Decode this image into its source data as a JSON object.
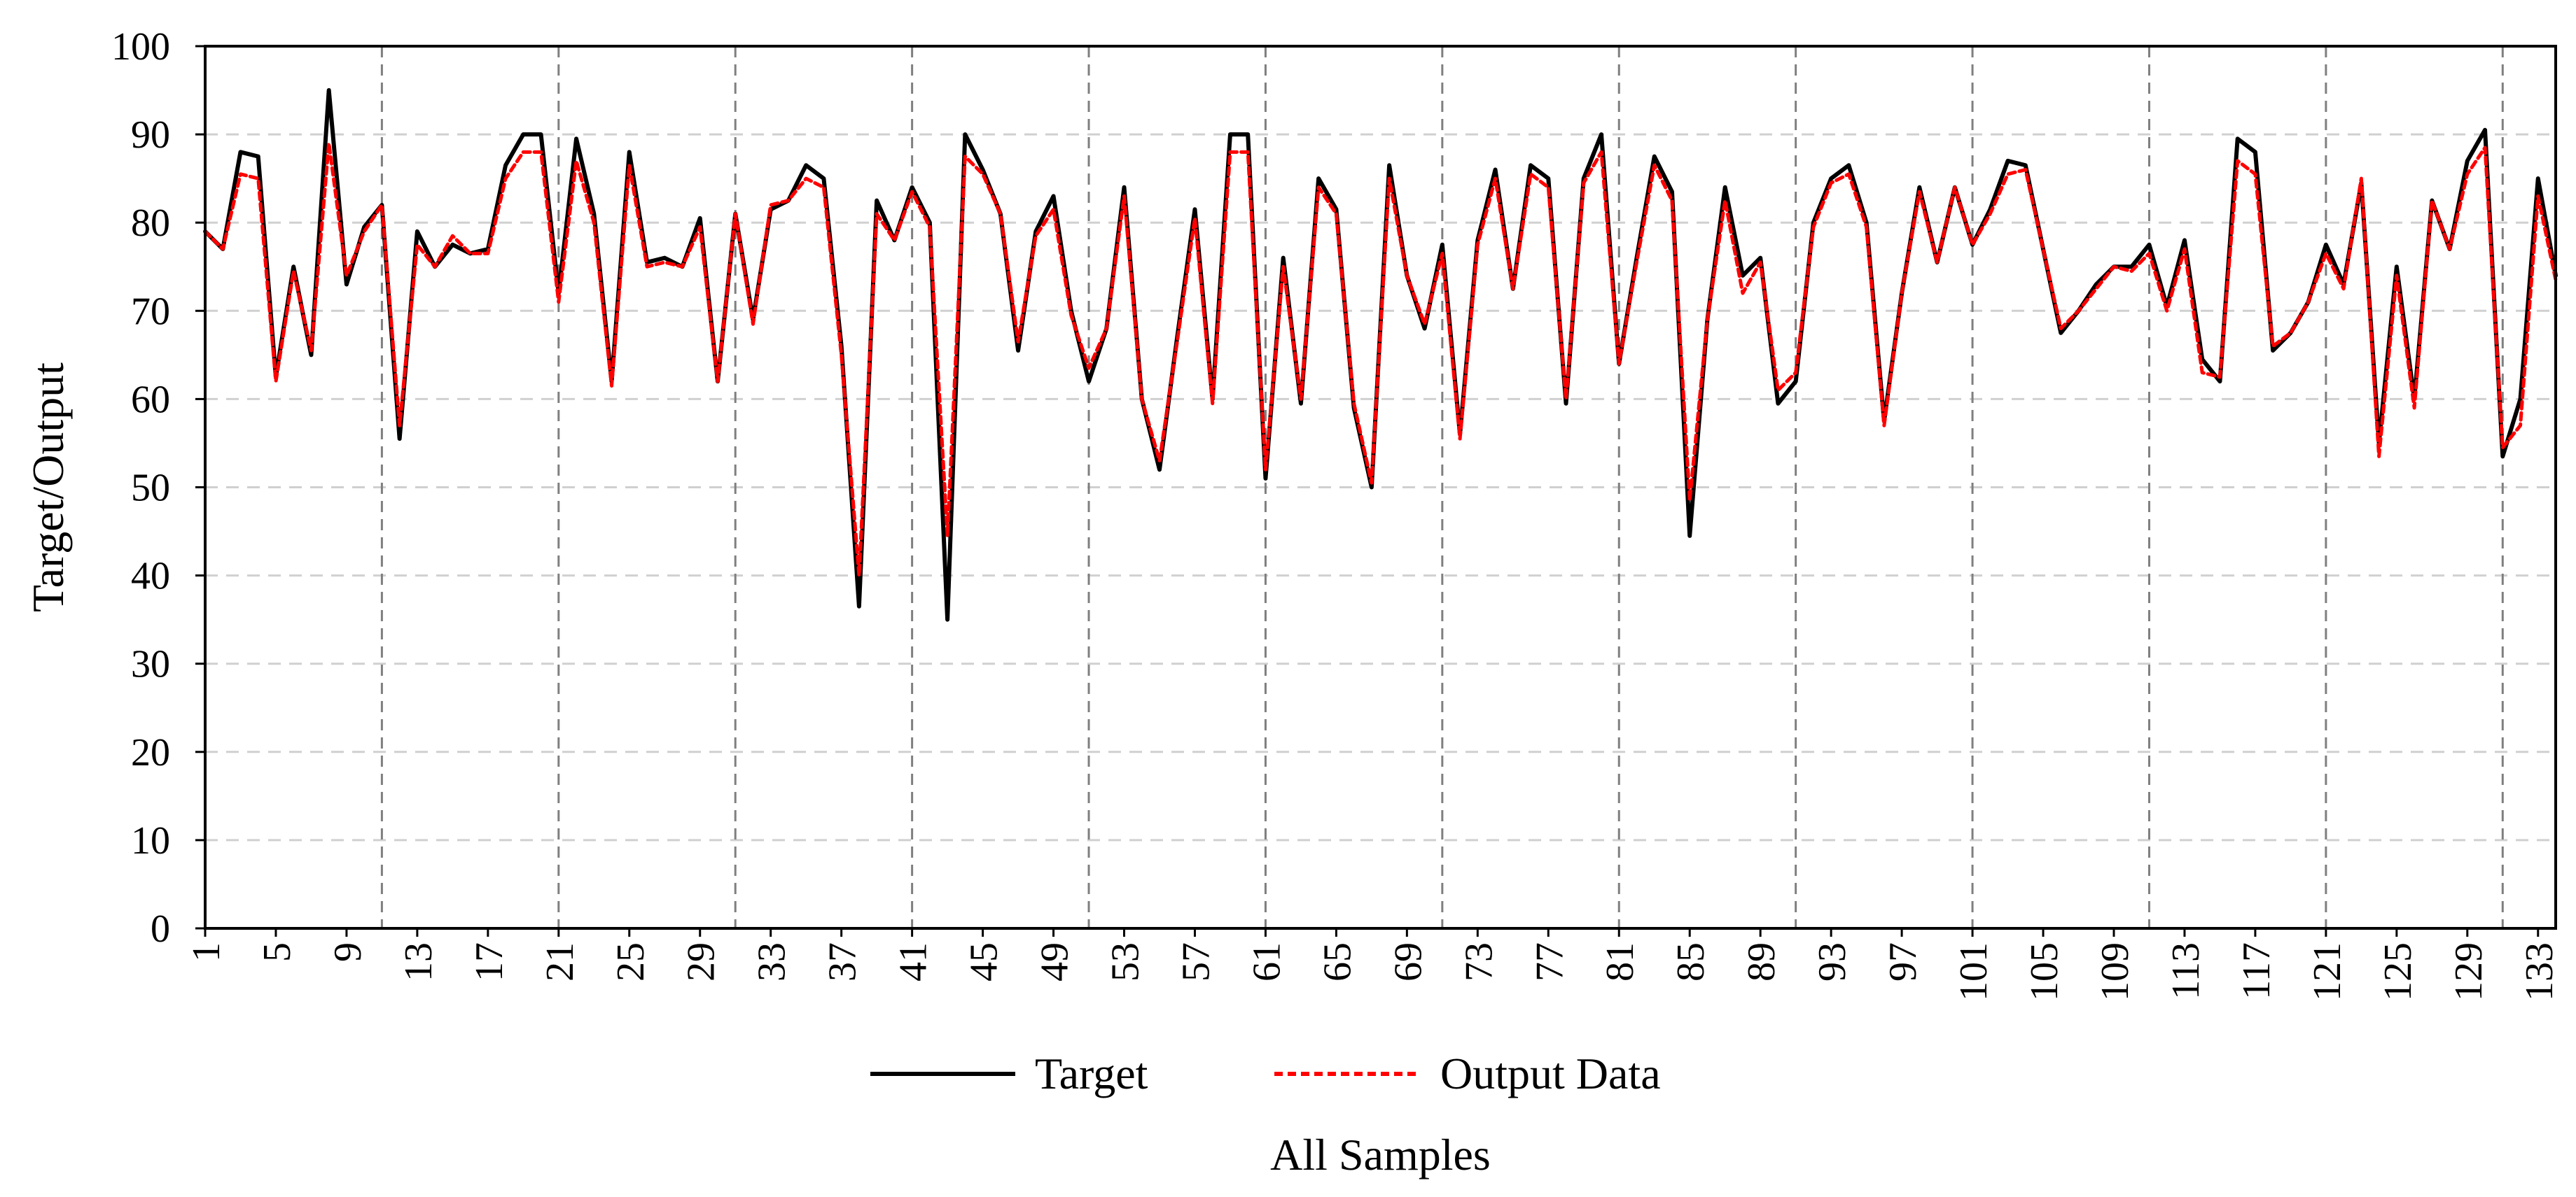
{
  "chart_data": {
    "type": "line",
    "title": "",
    "xlabel": "All Samples",
    "ylabel": "Target/Output",
    "xlim": [
      1,
      134
    ],
    "ylim": [
      0,
      100
    ],
    "yticks": [
      0,
      10,
      20,
      30,
      40,
      50,
      60,
      70,
      80,
      90,
      100
    ],
    "xticks": [
      1,
      5,
      9,
      13,
      17,
      21,
      25,
      29,
      33,
      37,
      41,
      45,
      49,
      53,
      57,
      61,
      65,
      69,
      73,
      77,
      81,
      85,
      89,
      93,
      97,
      101,
      105,
      109,
      113,
      117,
      121,
      125,
      129,
      133
    ],
    "vertical_dashed_lines_at": [
      11,
      21,
      31,
      41,
      51,
      61,
      71,
      81,
      91,
      101,
      111,
      121,
      131
    ],
    "horizontal_grid": true,
    "legend_position": "bottom-center",
    "series": [
      {
        "name": "Target",
        "color": "#000000",
        "style": "solid",
        "values": [
          79,
          77,
          88,
          87.5,
          62.5,
          75,
          65,
          95,
          73,
          79.5,
          82,
          55.5,
          79,
          75,
          77.5,
          76.5,
          77,
          86.5,
          90,
          90,
          72,
          89.5,
          81,
          62,
          88,
          75.5,
          76,
          75,
          80.5,
          62,
          81,
          69,
          81.5,
          82.5,
          86.5,
          85,
          66,
          36.5,
          82.5,
          78,
          84,
          80,
          35,
          90,
          86,
          81,
          65.5,
          79,
          83,
          70,
          62,
          68,
          84,
          60,
          52,
          67,
          81.5,
          60,
          90,
          90,
          51,
          76,
          59.5,
          85,
          81.5,
          59,
          50,
          86.5,
          74,
          68,
          77.5,
          56,
          78,
          86,
          72.5,
          86.5,
          85,
          59.5,
          85,
          90,
          64,
          76,
          87.5,
          83.5,
          44.5,
          69,
          84,
          74,
          76,
          59.5,
          62,
          80,
          85,
          86.5,
          80,
          57.5,
          72,
          84,
          75.5,
          84,
          77.5,
          81.5,
          87,
          86.5,
          77,
          67.5,
          70,
          73,
          75,
          75,
          77.5,
          70.5,
          78,
          64.5,
          62,
          89.5,
          88,
          65.5,
          67.5,
          71,
          77.5,
          73,
          84.5,
          55,
          75,
          60,
          82.5,
          77,
          87,
          90.5,
          53.5,
          60,
          85,
          74
        ]
      },
      {
        "name": "Output Data",
        "color": "#ff0000",
        "style": "dashed",
        "values": [
          79,
          77,
          85.5,
          85,
          62,
          74.5,
          65.5,
          89,
          74,
          79,
          82,
          57,
          77.5,
          75,
          78.5,
          76.5,
          76.5,
          85,
          88,
          88,
          71,
          87,
          80,
          61.5,
          86.5,
          75,
          75.5,
          75,
          79.5,
          62,
          81,
          68.5,
          82,
          82.5,
          85,
          84,
          65,
          40,
          81,
          78,
          83.5,
          79.5,
          44.5,
          87.5,
          85.5,
          81,
          66.5,
          78.5,
          81.5,
          69.5,
          63.5,
          68,
          83,
          60,
          53,
          66.5,
          80.5,
          59.5,
          88,
          88,
          52,
          75,
          60,
          84,
          81,
          59.5,
          50.5,
          85,
          74,
          68.5,
          76.5,
          55.5,
          77.5,
          85,
          72.5,
          85.5,
          84,
          60,
          84.5,
          88,
          64,
          75.5,
          86.5,
          82.5,
          48.5,
          69,
          82.5,
          72,
          75.5,
          61,
          63,
          79.5,
          84.5,
          85.5,
          79.5,
          57,
          72,
          83.5,
          75.5,
          84,
          77.5,
          81,
          85.5,
          86,
          77,
          68,
          70,
          72.5,
          75,
          74.5,
          76.5,
          70,
          77,
          63,
          62.5,
          87,
          85.5,
          66,
          67.5,
          71,
          76.5,
          72.5,
          85,
          53.5,
          74,
          59,
          82.5,
          77,
          85.5,
          88.5,
          54.5,
          57,
          83,
          73.5
        ]
      }
    ]
  }
}
